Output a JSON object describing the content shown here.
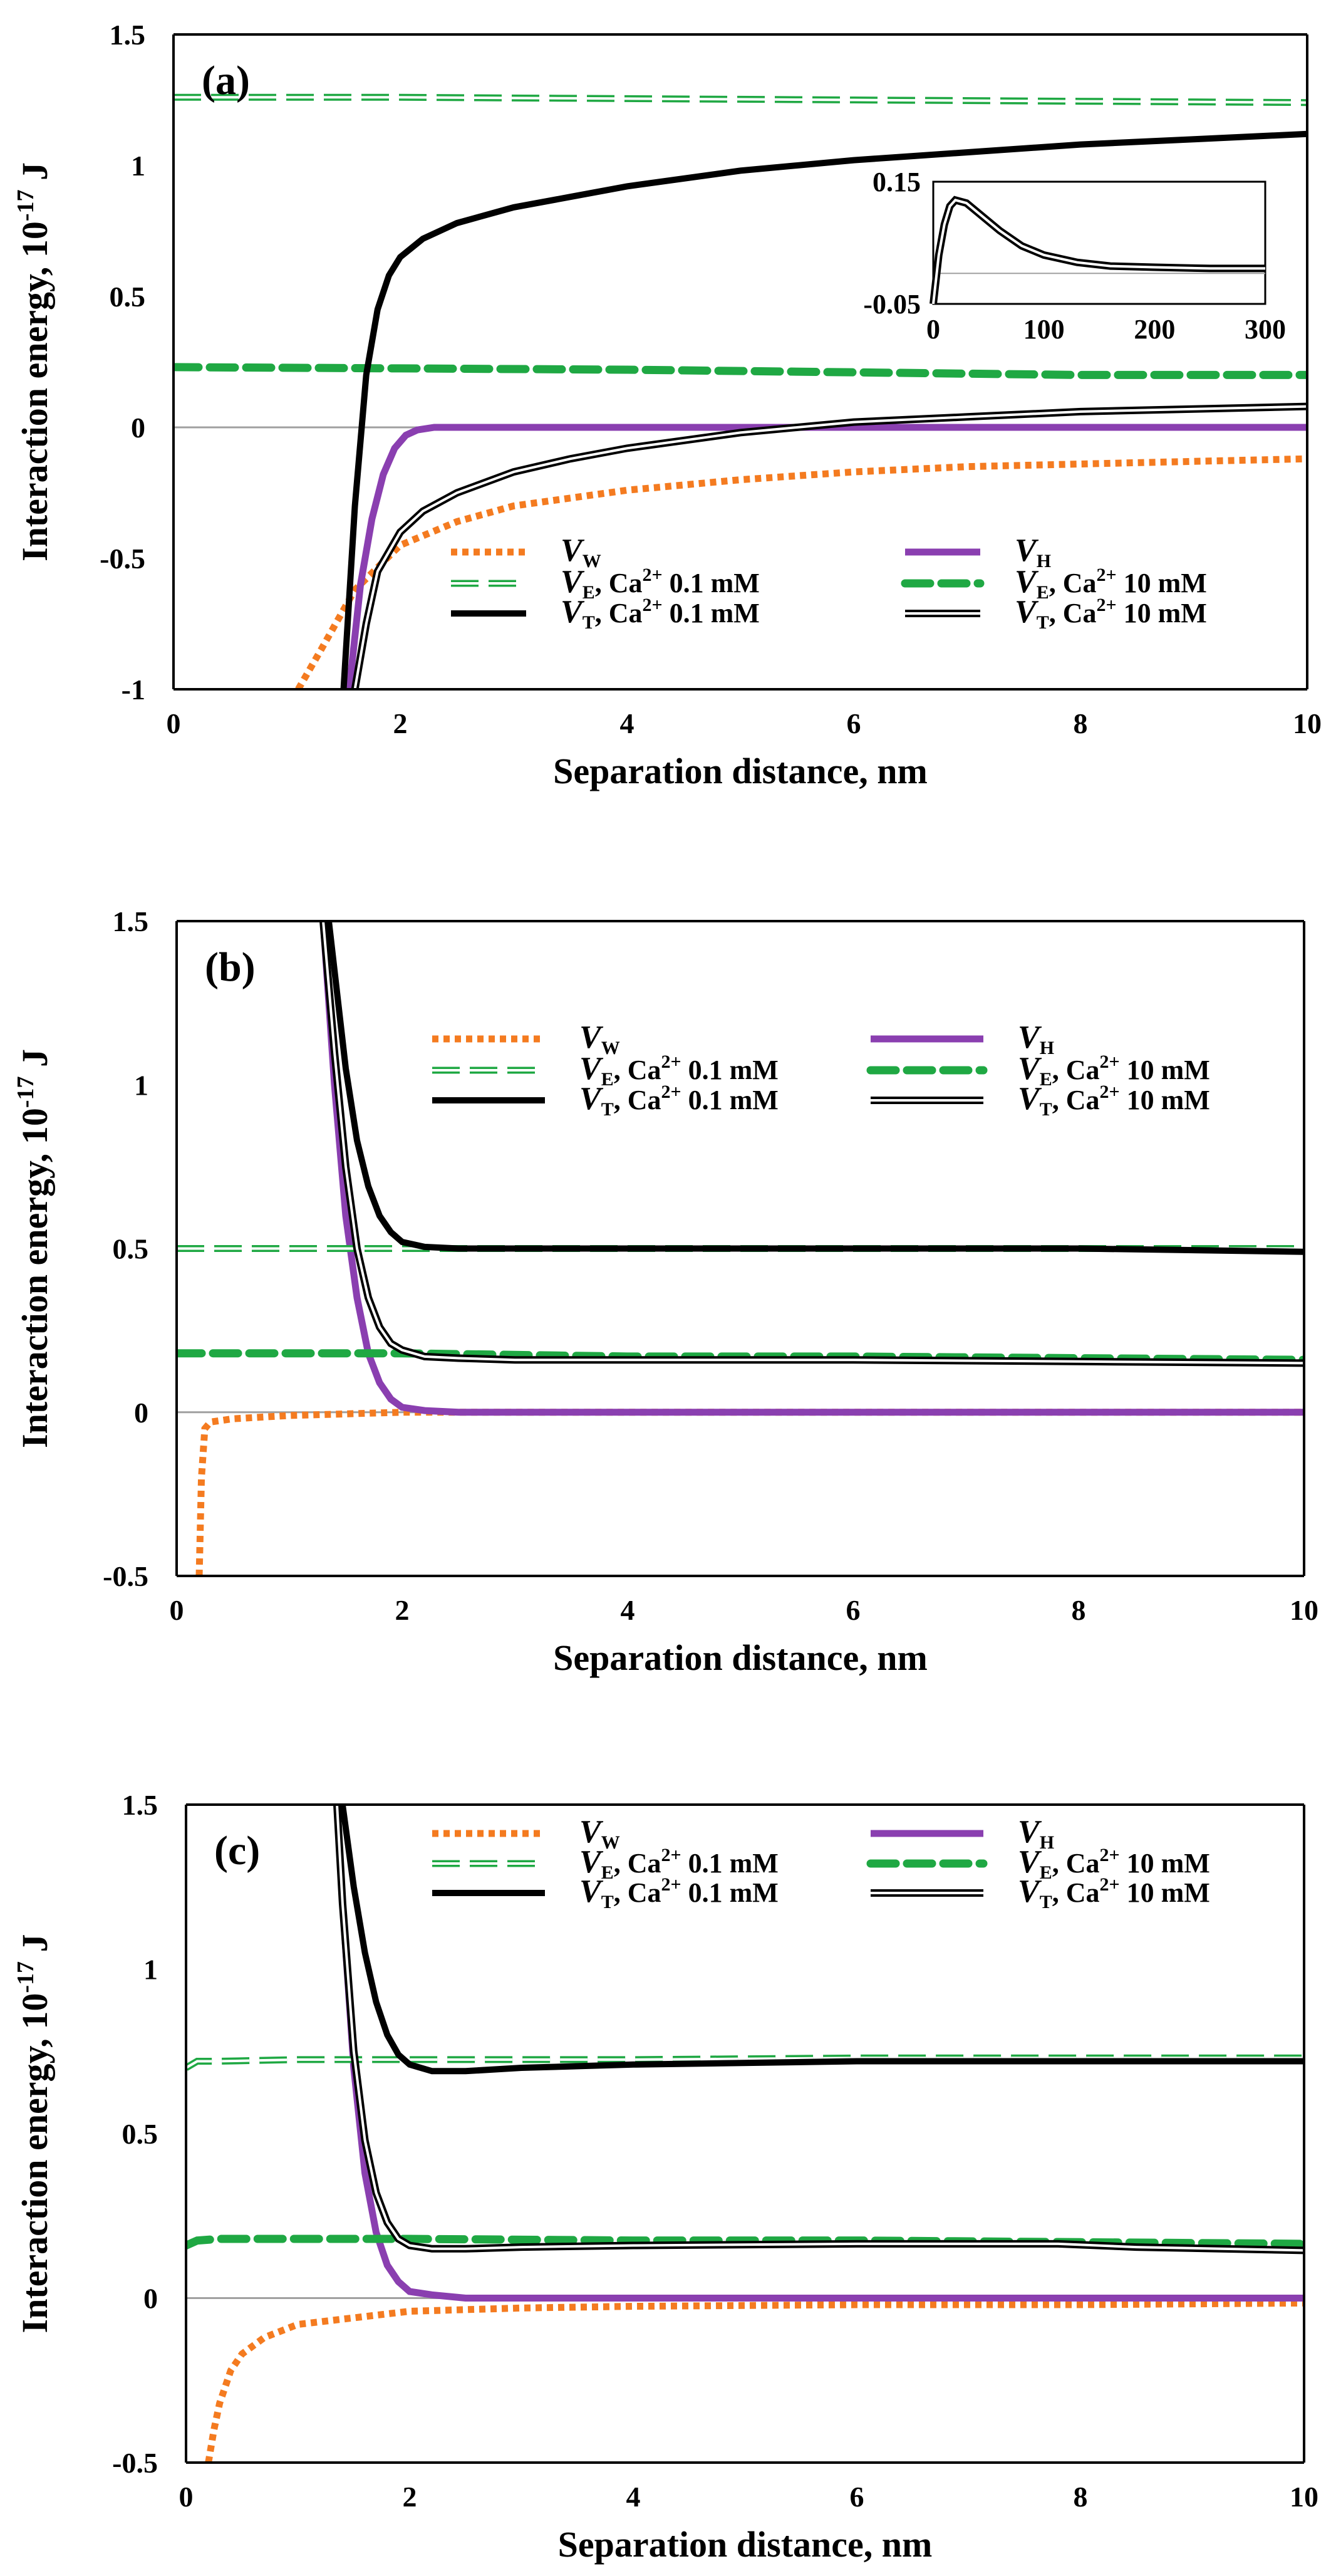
{
  "colors": {
    "vw": "#f47b20",
    "vh": "#8a3fb0",
    "ve": "#1fa843",
    "vt": "#000000",
    "zero_line": "#a0a0a0"
  },
  "legend": {
    "entries": [
      {
        "key": "vw",
        "main": "V",
        "sub": "W",
        "rest": ""
      },
      {
        "key": "vh",
        "main": "V",
        "sub": "H",
        "rest": ""
      },
      {
        "key": "ve01",
        "main": "V",
        "sub": "E",
        "rest": ", Ca",
        "sup": "2+",
        "tail": " 0.1 mM"
      },
      {
        "key": "ve10",
        "main": "V",
        "sub": "E",
        "rest": ", Ca",
        "sup": "2+",
        "tail": " 10 mM"
      },
      {
        "key": "vt01",
        "main": "V",
        "sub": "T",
        "rest": ", Ca",
        "sup": "2+",
        "tail": " 0.1 mM"
      },
      {
        "key": "vt10",
        "main": "V",
        "sub": "T",
        "rest": ", Ca",
        "sup": "2+",
        "tail": " 10 mM"
      }
    ]
  },
  "chart_data": [
    {
      "type": "line",
      "panel_label": "(a)",
      "xlabel": "Separation distance, nm",
      "ylabel_main": "Interaction energy, 10",
      "ylabel_sup": "-17",
      "ylabel_unit": " J",
      "xlim": [
        0,
        10
      ],
      "ylim": [
        -1,
        1.5
      ],
      "xticks": [
        "0",
        "2",
        "4",
        "6",
        "8",
        "10"
      ],
      "yticks": [
        "-1",
        "-0.5",
        "0",
        "0.5",
        "1",
        "1.5"
      ],
      "series": [
        {
          "key": "vw",
          "x": [
            1.1,
            1.3,
            1.6,
            2,
            2.5,
            3,
            4,
            5,
            6,
            7,
            8,
            9,
            10
          ],
          "y": [
            -1.0,
            -0.85,
            -0.62,
            -0.45,
            -0.36,
            -0.3,
            -0.24,
            -0.2,
            -0.17,
            -0.15,
            -0.14,
            -0.13,
            -0.12
          ]
        },
        {
          "key": "vh",
          "x": [
            1.55,
            1.65,
            1.75,
            1.85,
            1.95,
            2.05,
            2.15,
            2.3,
            2.5,
            3,
            10
          ],
          "y": [
            -1.0,
            -0.6,
            -0.35,
            -0.18,
            -0.08,
            -0.03,
            -0.01,
            0.0,
            0.0,
            0.0,
            0.0
          ]
        },
        {
          "key": "ve01",
          "x": [
            0,
            2,
            4,
            6,
            8,
            10
          ],
          "y": [
            1.26,
            1.26,
            1.255,
            1.25,
            1.245,
            1.24
          ]
        },
        {
          "key": "ve10",
          "x": [
            0,
            2,
            4,
            6,
            8,
            10
          ],
          "y": [
            0.23,
            0.225,
            0.22,
            0.21,
            0.2,
            0.2
          ]
        },
        {
          "key": "vt01",
          "x": [
            1.5,
            1.6,
            1.7,
            1.8,
            1.9,
            2.0,
            2.2,
            2.5,
            3,
            3.5,
            4,
            5,
            6,
            7,
            8,
            9,
            10
          ],
          "y": [
            -1.0,
            -0.3,
            0.2,
            0.45,
            0.58,
            0.65,
            0.72,
            0.78,
            0.84,
            0.88,
            0.92,
            0.98,
            1.02,
            1.05,
            1.08,
            1.1,
            1.12
          ]
        },
        {
          "key": "vt10",
          "x": [
            1.6,
            1.7,
            1.8,
            2.0,
            2.2,
            2.5,
            3,
            3.5,
            4,
            5,
            6,
            7,
            8,
            9,
            10
          ],
          "y": [
            -1.0,
            -0.75,
            -0.55,
            -0.4,
            -0.32,
            -0.25,
            -0.17,
            -0.12,
            -0.08,
            -0.02,
            0.02,
            0.04,
            0.06,
            0.07,
            0.08
          ]
        }
      ],
      "inset": {
        "xlim": [
          0,
          300
        ],
        "ylim": [
          -0.05,
          0.15
        ],
        "xticks": [
          "0",
          "100",
          "200",
          "300"
        ],
        "yticks": [
          "-0.05",
          "0.15"
        ],
        "x": [
          0,
          5,
          10,
          15,
          20,
          30,
          40,
          60,
          80,
          100,
          130,
          160,
          200,
          250,
          300
        ],
        "y": [
          -0.05,
          0.03,
          0.08,
          0.11,
          0.12,
          0.115,
          0.1,
          0.07,
          0.045,
          0.03,
          0.018,
          0.012,
          0.01,
          0.008,
          0.008
        ]
      }
    },
    {
      "type": "line",
      "panel_label": "(b)",
      "xlabel": "Separation distance, nm",
      "ylabel_main": "Interaction energy, 10",
      "ylabel_sup": "-17",
      "ylabel_unit": " J",
      "xlim": [
        0,
        10
      ],
      "ylim": [
        -0.5,
        1.5
      ],
      "xticks": [
        "0",
        "2",
        "4",
        "6",
        "8",
        "10"
      ],
      "yticks": [
        "-0.5",
        "0",
        "0.5",
        "1",
        "1.5"
      ],
      "series": [
        {
          "key": "vw",
          "x": [
            0.2,
            0.22,
            0.25,
            0.3,
            0.5,
            1,
            2,
            4,
            6,
            8,
            10
          ],
          "y": [
            -0.5,
            -0.2,
            -0.05,
            -0.03,
            -0.02,
            -0.01,
            0.0,
            0.0,
            0.0,
            0.0,
            0.0
          ]
        },
        {
          "key": "vh",
          "x": [
            1.3,
            1.4,
            1.5,
            1.6,
            1.7,
            1.8,
            1.9,
            2.0,
            2.2,
            2.5,
            10
          ],
          "y": [
            1.5,
            1.0,
            0.6,
            0.35,
            0.18,
            0.09,
            0.04,
            0.015,
            0.005,
            0.0,
            0.0
          ]
        },
        {
          "key": "ve01",
          "x": [
            0,
            2,
            4,
            6,
            8,
            10
          ],
          "y": [
            0.5,
            0.5,
            0.5,
            0.5,
            0.5,
            0.5
          ]
        },
        {
          "key": "ve10",
          "x": [
            0,
            2,
            4,
            6,
            8,
            10
          ],
          "y": [
            0.18,
            0.18,
            0.17,
            0.17,
            0.165,
            0.16
          ]
        },
        {
          "key": "vt01",
          "x": [
            1.35,
            1.4,
            1.5,
            1.6,
            1.7,
            1.8,
            1.9,
            2.0,
            2.2,
            2.5,
            3,
            4,
            6,
            8,
            10
          ],
          "y": [
            1.5,
            1.35,
            1.05,
            0.83,
            0.69,
            0.6,
            0.55,
            0.52,
            0.505,
            0.5,
            0.5,
            0.5,
            0.5,
            0.5,
            0.49
          ]
        },
        {
          "key": "vt10",
          "x": [
            1.3,
            1.4,
            1.5,
            1.6,
            1.7,
            1.8,
            1.9,
            2.0,
            2.2,
            2.5,
            3,
            4,
            6,
            8,
            10
          ],
          "y": [
            1.5,
            1.1,
            0.75,
            0.5,
            0.35,
            0.26,
            0.21,
            0.19,
            0.17,
            0.165,
            0.16,
            0.16,
            0.16,
            0.155,
            0.15
          ]
        }
      ]
    },
    {
      "type": "line",
      "panel_label": "(c)",
      "xlabel": "Separation distance, nm",
      "ylabel_main": "Interaction energy, 10",
      "ylabel_sup": "-17",
      "ylabel_unit": " J",
      "xlim": [
        0,
        10
      ],
      "ylim": [
        -0.5,
        1.5
      ],
      "xticks": [
        "0",
        "2",
        "4",
        "6",
        "8",
        "10"
      ],
      "yticks": [
        "-0.5",
        "0",
        "0.5",
        "1",
        "1.5"
      ],
      "series": [
        {
          "key": "vw",
          "x": [
            0.2,
            0.25,
            0.3,
            0.4,
            0.5,
            0.7,
            1,
            1.5,
            2,
            3,
            4,
            6,
            8,
            10
          ],
          "y": [
            -0.5,
            -0.4,
            -0.32,
            -0.22,
            -0.17,
            -0.12,
            -0.08,
            -0.06,
            -0.04,
            -0.03,
            -0.025,
            -0.02,
            -0.02,
            -0.015
          ]
        },
        {
          "key": "vh",
          "x": [
            1.35,
            1.4,
            1.5,
            1.6,
            1.7,
            1.8,
            1.9,
            2.0,
            2.2,
            2.5,
            10
          ],
          "y": [
            1.5,
            1.2,
            0.7,
            0.38,
            0.2,
            0.1,
            0.05,
            0.02,
            0.01,
            0.0,
            0.0
          ]
        },
        {
          "key": "ve01",
          "x": [
            0,
            0.1,
            0.3,
            1,
            2,
            4,
            6,
            8,
            10
          ],
          "y": [
            0.7,
            0.72,
            0.72,
            0.725,
            0.725,
            0.725,
            0.73,
            0.73,
            0.73
          ]
        },
        {
          "key": "ve10",
          "x": [
            0,
            0.1,
            0.3,
            1,
            2,
            4,
            6,
            8,
            10
          ],
          "y": [
            0.16,
            0.175,
            0.18,
            0.18,
            0.18,
            0.175,
            0.175,
            0.17,
            0.165
          ]
        },
        {
          "key": "vt01",
          "x": [
            1.4,
            1.5,
            1.6,
            1.7,
            1.8,
            1.9,
            2.0,
            2.2,
            2.5,
            3,
            4,
            6,
            8,
            10
          ],
          "y": [
            1.5,
            1.25,
            1.05,
            0.9,
            0.8,
            0.74,
            0.71,
            0.69,
            0.69,
            0.7,
            0.71,
            0.72,
            0.72,
            0.72
          ]
        },
        {
          "key": "vt10",
          "x": [
            1.35,
            1.4,
            1.5,
            1.6,
            1.7,
            1.8,
            1.9,
            2.0,
            2.2,
            2.5,
            3,
            4,
            6,
            7.8,
            8.5,
            10
          ],
          "y": [
            1.5,
            1.2,
            0.75,
            0.48,
            0.32,
            0.23,
            0.18,
            0.16,
            0.15,
            0.15,
            0.155,
            0.16,
            0.165,
            0.165,
            0.155,
            0.145
          ]
        }
      ]
    }
  ]
}
